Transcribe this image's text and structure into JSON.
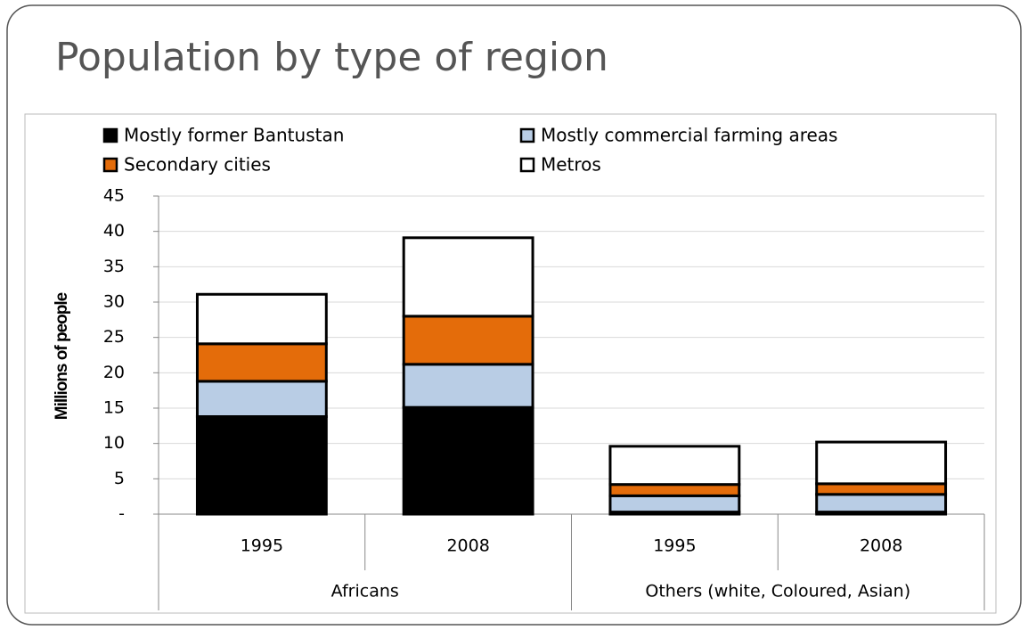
{
  "chart_data": {
    "type": "stacked_bar",
    "title": "Population by type of region",
    "y_axis_label": "Millions of people",
    "categories": [
      "1995",
      "2008",
      "1995",
      "2008"
    ],
    "category_groups": [
      "Africans",
      "Others (white, Coloured, Asian)"
    ],
    "series": [
      {
        "name": "Mostly former Bantustan",
        "color": "#000000",
        "values": [
          13.8,
          15.1,
          0.3,
          0.3
        ]
      },
      {
        "name": "Mostly commercial farming areas",
        "color": "#b9cde5",
        "values": [
          5.0,
          6.1,
          2.3,
          2.5
        ]
      },
      {
        "name": "Secondary cities",
        "color": "#e46c0a",
        "values": [
          5.3,
          6.8,
          1.6,
          1.5
        ]
      },
      {
        "name": "Metros",
        "color": "#ffffff",
        "values": [
          7.0,
          11.1,
          5.4,
          5.9
        ]
      }
    ],
    "ylim": [
      0,
      45
    ],
    "yticks": [
      {
        "value": 0,
        "label": "-"
      },
      5,
      10,
      15,
      20,
      25,
      30,
      35,
      40,
      45
    ],
    "grid": true
  }
}
